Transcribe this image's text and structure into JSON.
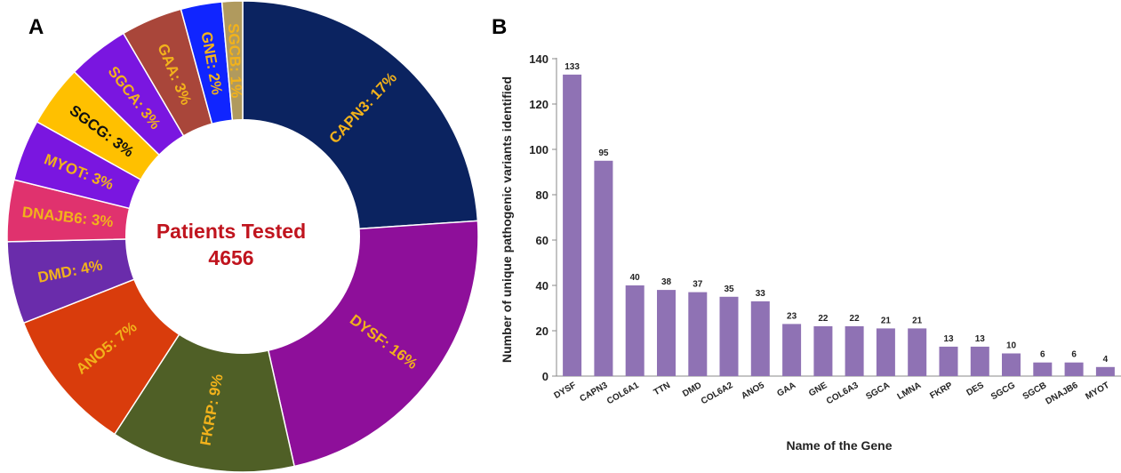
{
  "panels": {
    "a_letter": "A",
    "b_letter": "B"
  },
  "chart_data": [
    {
      "type": "pie",
      "variant": "donut",
      "center_label": {
        "line1": "Patients Tested",
        "line2": "4656",
        "color": "#c0141e"
      },
      "slices": [
        {
          "label": "CAPN3: 17%",
          "value": 17,
          "color": "#0b2360",
          "text_color": "#f2b21b"
        },
        {
          "label": "DYSF: 16%",
          "value": 16,
          "color": "#8e0f9a",
          "text_color": "#f2b21b"
        },
        {
          "label": "FKRP: 9%",
          "value": 9,
          "color": "#4f5f26",
          "text_color": "#f2b21b"
        },
        {
          "label": "ANO5: 7%",
          "value": 7,
          "color": "#d93c0c",
          "text_color": "#f2b21b"
        },
        {
          "label": "DMD: 4%",
          "value": 4,
          "color": "#6a2cab",
          "text_color": "#f2b21b"
        },
        {
          "label": "DNAJB6: 3%",
          "value": 3,
          "color": "#e0326e",
          "text_color": "#f2b21b"
        },
        {
          "label": "MYOT: 3%",
          "value": 3,
          "color": "#7a16e0",
          "text_color": "#f2b21b"
        },
        {
          "label": "SGCG: 3%",
          "value": 3,
          "color": "#ffc000",
          "text_color": "#101010"
        },
        {
          "label": "SGCA: 3%",
          "value": 3,
          "color": "#7a16e0",
          "text_color": "#f2b21b"
        },
        {
          "label": "GAA: 3%",
          "value": 3,
          "color": "#a9463a",
          "text_color": "#f2b21b"
        },
        {
          "label": "GNE: 2%",
          "value": 2,
          "color": "#1025ff",
          "text_color": "#f2b21b"
        },
        {
          "label": "SGCB: 1%",
          "value": 1,
          "color": "#b09a5e",
          "text_color": "#f2b21b"
        }
      ]
    },
    {
      "type": "bar",
      "categories": [
        "DYSF",
        "CAPN3",
        "COL6A1",
        "TTN",
        "DMD",
        "COL6A2",
        "ANO5",
        "GAA",
        "GNE",
        "COL6A3",
        "SGCA",
        "LMNA",
        "FKRP",
        "DES",
        "SGCG",
        "SGCB",
        "DNAJB6",
        "MYOT"
      ],
      "values": [
        133,
        95,
        40,
        38,
        37,
        35,
        33,
        23,
        22,
        22,
        21,
        21,
        13,
        13,
        10,
        6,
        6,
        4
      ],
      "value_labels": [
        "133",
        "95",
        "40",
        "38",
        "37",
        "35",
        "33",
        "23",
        "22",
        "22",
        "21",
        "21",
        "13",
        "13",
        "10",
        "6",
        "6",
        "4"
      ],
      "xlabel": "Name of the Gene",
      "ylabel": "Number of unique pathogenic variants identified",
      "ylim": [
        0,
        140
      ],
      "yticks": [
        0,
        20,
        40,
        60,
        80,
        100,
        120,
        140
      ],
      "ytick_labels": [
        "0",
        "20",
        "40",
        "60",
        "80",
        "100",
        "120",
        "140"
      ],
      "bar_color": "#8f72b4",
      "grid": false
    }
  ]
}
